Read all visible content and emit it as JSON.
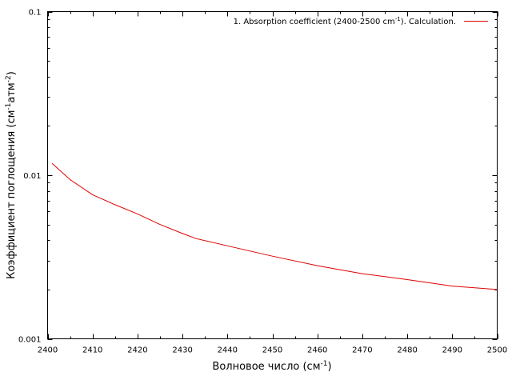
{
  "chart_data": {
    "type": "line",
    "xlabel": "Волновое число (см",
    "xlabel_sup": "-1",
    "xlabel_end": ")",
    "ylabel_parts": [
      "Коэффициент поглощения (см",
      "-1",
      "атм",
      "-2",
      ")"
    ],
    "xlim": [
      2400,
      2500
    ],
    "ylim": [
      0.001,
      0.1
    ],
    "yscale": "log",
    "x_ticks": [
      2400,
      2410,
      2420,
      2430,
      2440,
      2450,
      2460,
      2470,
      2480,
      2490,
      2500
    ],
    "y_ticks": [
      0.001,
      0.01,
      0.1
    ],
    "y_tick_labels": [
      "0.001",
      "0.01",
      "0.1"
    ],
    "grid": false,
    "legend_position": "top-right",
    "series": [
      {
        "name": "1. Absorption coefficient (2400-2500 cm",
        "name_sup": "-1",
        "name_end": "). Calculation.",
        "color": "#e00000",
        "x": [
          2401,
          2405,
          2410,
          2415,
          2420,
          2425,
          2430,
          2433,
          2440,
          2450,
          2460,
          2470,
          2475,
          2480,
          2490,
          2500
        ],
        "y": [
          0.0118,
          0.0094,
          0.0076,
          0.0066,
          0.0058,
          0.005,
          0.0044,
          0.0041,
          0.0037,
          0.0032,
          0.0028,
          0.0025,
          0.0024,
          0.0023,
          0.0021,
          0.002
        ]
      }
    ]
  }
}
